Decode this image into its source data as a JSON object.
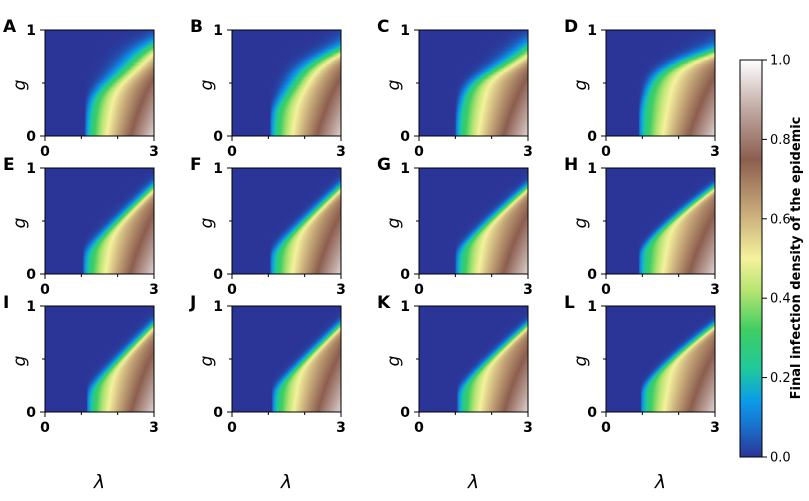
{
  "chart_data": {
    "type": "heatmap",
    "panels": [
      {
        "label": "A",
        "threshold": 1.1,
        "exponent": 0.6,
        "spread": 0.26,
        "jagged": 0.02
      },
      {
        "label": "B",
        "threshold": 1.05,
        "exponent": 0.62,
        "spread": 0.24,
        "jagged": 0.025
      },
      {
        "label": "C",
        "threshold": 1.0,
        "exponent": 0.55,
        "spread": 0.2,
        "jagged": 0.025
      },
      {
        "label": "D",
        "threshold": 0.9,
        "exponent": 0.4,
        "spread": 0.18,
        "jagged": 0.025
      },
      {
        "label": "E",
        "threshold": 1.05,
        "exponent": 1.0,
        "spread": 0.14,
        "jagged": 0
      },
      {
        "label": "F",
        "threshold": 1.05,
        "exponent": 1.0,
        "spread": 0.13,
        "jagged": 0
      },
      {
        "label": "G",
        "threshold": 1.0,
        "exponent": 0.95,
        "spread": 0.12,
        "jagged": 0
      },
      {
        "label": "H",
        "threshold": 0.9,
        "exponent": 0.85,
        "spread": 0.1,
        "jagged": 0
      },
      {
        "label": "I",
        "threshold": 1.15,
        "exponent": 1.0,
        "spread": 0.13,
        "jagged": 0
      },
      {
        "label": "J",
        "threshold": 1.1,
        "exponent": 1.0,
        "spread": 0.12,
        "jagged": 0
      },
      {
        "label": "K",
        "threshold": 1.05,
        "exponent": 0.95,
        "spread": 0.11,
        "jagged": 0
      },
      {
        "label": "L",
        "threshold": 0.95,
        "exponent": 0.85,
        "spread": 0.1,
        "jagged": 0
      }
    ],
    "x_range": [
      0,
      3
    ],
    "y_range": [
      0,
      1
    ],
    "x_ticks": [
      "0",
      "3"
    ],
    "y_ticks": [
      "0",
      "1"
    ],
    "x_label": "λ",
    "y_label": "g",
    "colorbar": {
      "label": "Final infection density of the epidemic",
      "range": [
        0,
        1
      ],
      "ticks": [
        "0.0",
        "0.2",
        "0.4",
        "0.6",
        "0.8",
        "1.0"
      ]
    },
    "colormap": [
      [
        0.0,
        "#2b3597"
      ],
      [
        0.08,
        "#1873cf"
      ],
      [
        0.14,
        "#0b9bea"
      ],
      [
        0.22,
        "#1fc89c"
      ],
      [
        0.32,
        "#3fce62"
      ],
      [
        0.42,
        "#b7e572"
      ],
      [
        0.5,
        "#f5f29c"
      ],
      [
        0.62,
        "#c6a878"
      ],
      [
        0.75,
        "#8c5e4f"
      ],
      [
        0.88,
        "#c3aca6"
      ],
      [
        1.0,
        "#ffffff"
      ]
    ]
  }
}
